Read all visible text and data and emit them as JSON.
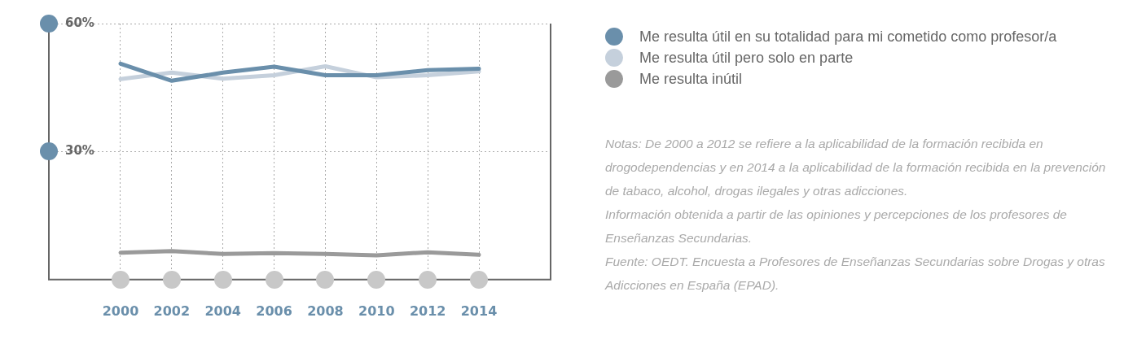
{
  "chart_data": {
    "type": "line",
    "x": [
      2000,
      2002,
      2004,
      2006,
      2008,
      2010,
      2012,
      2014
    ],
    "xlim": [
      1997.2,
      2016.8
    ],
    "xticks": [
      2000,
      2002,
      2004,
      2006,
      2008,
      2010,
      2012,
      2014
    ],
    "ylim": [
      0,
      60
    ],
    "yticks": [
      {
        "value": 30,
        "label": "30%"
      },
      {
        "value": 60,
        "label": "60%"
      }
    ],
    "grid": true,
    "legend": "right",
    "marker": "none",
    "line_style": "solid",
    "series": [
      {
        "name": "Me resulta útil en su totalidad para mi cometido como profesor/a",
        "color": "#6a8fab",
        "values": [
          50.6,
          46.6,
          48.5,
          49.9,
          47.9,
          47.9,
          49.1,
          49.4
        ]
      },
      {
        "name": "Me resulta útil pero solo en parte",
        "color": "#c5d0dc",
        "values": [
          47.0,
          48.5,
          47.1,
          47.9,
          50.0,
          47.4,
          47.9,
          48.8
        ]
      },
      {
        "name": "Me resulta inútil",
        "color": "#9a9a9a",
        "values": [
          6.3,
          6.7,
          6.0,
          6.2,
          6.0,
          5.7,
          6.4,
          5.8
        ]
      }
    ],
    "annotations": [
      "Notas: De 2000 a 2012 se refiere a la aplicabilidad de la formación recibida en drogodependencias y en 2014 a la aplicabilidad de la formación recibida en la prevención de tabaco, alcohol, drogas ilegales y otras adicciones.",
      "Información obtenida a partir de las opiniones y percepciones de los profesores de Enseñanzas Secundarias.",
      "Fuente: OEDT. Encuesta a Profesores de Enseñanzas Secundarias sobre Drogas y otras Adicciones en España (EPAD)."
    ]
  }
}
